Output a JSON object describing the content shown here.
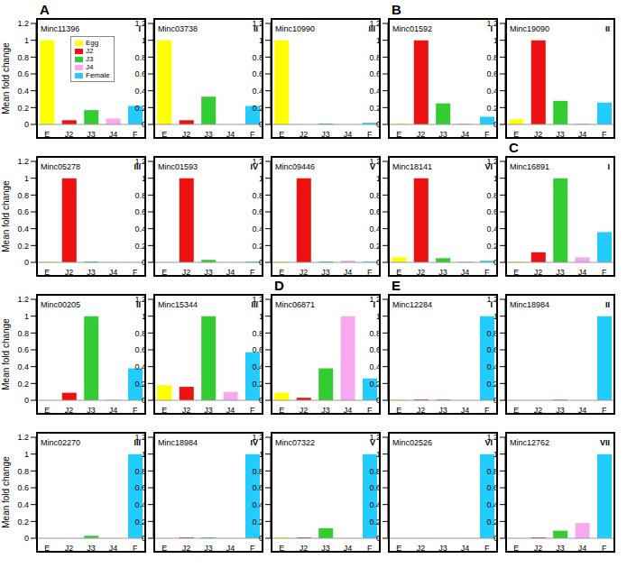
{
  "chart_data": [
    {
      "type": "bar",
      "title": "Minc11396",
      "annotations": [
        "I"
      ],
      "group_label": "A",
      "y_label": "Mean fold change",
      "legend": "upper right",
      "legend_labels": [
        "Egg",
        "J2",
        "J3",
        "J4",
        "Female"
      ],
      "categories": [
        "E",
        "J2",
        "J3",
        "J4",
        "F"
      ],
      "values": [
        1.0,
        0.05,
        0.17,
        0.07,
        0.22
      ],
      "colors": [
        "#ffff00",
        "#ee1111",
        "#33cc33",
        "#f7a8f0",
        "#22ccff"
      ],
      "ylim": [
        0,
        1.2
      ],
      "yticks": [
        0,
        0.2,
        0.4,
        0.6,
        0.8,
        1,
        1.2
      ]
    },
    {
      "type": "bar",
      "title": "Minc03738",
      "annotations": [
        "II"
      ],
      "categories": [
        "E",
        "J2",
        "J3",
        "J4",
        "F"
      ],
      "values": [
        1.0,
        0.05,
        0.33,
        0.0,
        0.22
      ],
      "colors": [
        "#ffff00",
        "#ee1111",
        "#33cc33",
        "#f7a8f0",
        "#22ccff"
      ],
      "ylim": [
        0,
        1.2
      ],
      "yticks": [
        0,
        0.2,
        0.4,
        0.6,
        0.8,
        1,
        1.2
      ]
    },
    {
      "type": "bar",
      "title": "Minc10990",
      "annotations": [
        "III"
      ],
      "categories": [
        "E",
        "J2",
        "J3",
        "J4",
        "F"
      ],
      "values": [
        1.0,
        0.0,
        0.01,
        0.0,
        0.02
      ],
      "colors": [
        "#ffff00",
        "#ee1111",
        "#33cc33",
        "#f7a8f0",
        "#22ccff"
      ],
      "ylim": [
        0,
        1.2
      ],
      "yticks": [
        0,
        0.2,
        0.4,
        0.6,
        0.8,
        1,
        1.2
      ]
    },
    {
      "type": "bar",
      "title": "Minc01592",
      "annotations": [
        "I"
      ],
      "group_label": "B",
      "categories": [
        "E",
        "J2",
        "J3",
        "J4",
        "F"
      ],
      "values": [
        0.01,
        1.0,
        0.25,
        0.01,
        0.09
      ],
      "colors": [
        "#ffff00",
        "#ee1111",
        "#33cc33",
        "#f7a8f0",
        "#22ccff"
      ],
      "ylim": [
        0,
        1.2
      ],
      "yticks": [
        0,
        0.2,
        0.4,
        0.6,
        0.8,
        1,
        1.2
      ]
    },
    {
      "type": "bar",
      "title": "Minc19090",
      "annotations": [
        "II"
      ],
      "categories": [
        "E",
        "J2",
        "J3",
        "J4",
        "F"
      ],
      "values": [
        0.06,
        1.0,
        0.28,
        0.01,
        0.26
      ],
      "colors": [
        "#ffff00",
        "#ee1111",
        "#33cc33",
        "#f7a8f0",
        "#22ccff"
      ],
      "ylim": [
        0,
        1.2
      ],
      "yticks": [
        0,
        0.2,
        0.4,
        0.6,
        0.8,
        1,
        1.2
      ]
    },
    {
      "type": "bar",
      "title": "Minc05278",
      "annotations": [
        "III"
      ],
      "y_label": "Mean fold change",
      "categories": [
        "E",
        "J2",
        "J3",
        "J4",
        "F"
      ],
      "values": [
        0.01,
        1.0,
        0.01,
        0.0,
        0.0
      ],
      "colors": [
        "#ffff00",
        "#ee1111",
        "#33cc33",
        "#f7a8f0",
        "#22ccff"
      ],
      "ylim": [
        0,
        1.2
      ],
      "yticks": [
        0,
        0.2,
        0.4,
        0.6,
        0.8,
        1,
        1.2
      ]
    },
    {
      "type": "bar",
      "title": "Minc01593",
      "annotations": [
        "IV"
      ],
      "categories": [
        "E",
        "J2",
        "J3",
        "J4",
        "F"
      ],
      "values": [
        0.0,
        1.0,
        0.03,
        0.0,
        0.01
      ],
      "colors": [
        "#ffff00",
        "#ee1111",
        "#33cc33",
        "#f7a8f0",
        "#22ccff"
      ],
      "ylim": [
        0,
        1.2
      ],
      "yticks": [
        0,
        0.2,
        0.4,
        0.6,
        0.8,
        1,
        1.2
      ]
    },
    {
      "type": "bar",
      "title": "Minc09446",
      "annotations": [
        "V"
      ],
      "categories": [
        "E",
        "J2",
        "J3",
        "J4",
        "F"
      ],
      "values": [
        0.01,
        1.0,
        0.01,
        0.02,
        0.01
      ],
      "colors": [
        "#ffff00",
        "#ee1111",
        "#33cc33",
        "#f7a8f0",
        "#22ccff"
      ],
      "ylim": [
        0,
        1.2
      ],
      "yticks": [
        0,
        0.2,
        0.4,
        0.6,
        0.8,
        1,
        1.2
      ]
    },
    {
      "type": "bar",
      "title": "Minc18141",
      "annotations": [
        "VI"
      ],
      "categories": [
        "E",
        "J2",
        "J3",
        "J4",
        "F"
      ],
      "values": [
        0.06,
        1.0,
        0.05,
        0.01,
        0.02
      ],
      "colors": [
        "#ffff00",
        "#ee1111",
        "#33cc33",
        "#f7a8f0",
        "#22ccff"
      ],
      "ylim": [
        0,
        1.2
      ],
      "yticks": [
        0,
        0.2,
        0.4,
        0.6,
        0.8,
        1,
        1.2
      ]
    },
    {
      "type": "bar",
      "title": "Minc16891",
      "annotations": [
        "I"
      ],
      "group_label": "C",
      "categories": [
        "E",
        "J2",
        "J3",
        "J4",
        "F"
      ],
      "values": [
        0.01,
        0.12,
        1.0,
        0.06,
        0.36
      ],
      "colors": [
        "#ffff00",
        "#ee1111",
        "#33cc33",
        "#f7a8f0",
        "#22ccff"
      ],
      "ylim": [
        0,
        1.2
      ],
      "yticks": [
        0,
        0.2,
        0.4,
        0.6,
        0.8,
        1,
        1.2
      ]
    },
    {
      "type": "bar",
      "title": "Minc00205",
      "annotations": [
        "II"
      ],
      "y_label": "Mean fold change",
      "categories": [
        "E",
        "J2",
        "J3",
        "J4",
        "F"
      ],
      "values": [
        0.0,
        0.09,
        1.0,
        0.01,
        0.38
      ],
      "colors": [
        "#ffff00",
        "#ee1111",
        "#33cc33",
        "#f7a8f0",
        "#22ccff"
      ],
      "ylim": [
        0,
        1.2
      ],
      "yticks": [
        0,
        0.2,
        0.4,
        0.6,
        0.8,
        1,
        1.2
      ]
    },
    {
      "type": "bar",
      "title": "Minc15344",
      "annotations": [
        "III"
      ],
      "categories": [
        "E",
        "J2",
        "J3",
        "J4",
        "F"
      ],
      "values": [
        0.18,
        0.16,
        1.0,
        0.1,
        0.57
      ],
      "colors": [
        "#ffff00",
        "#ee1111",
        "#33cc33",
        "#f7a8f0",
        "#22ccff"
      ],
      "ylim": [
        0,
        1.2
      ],
      "yticks": [
        0,
        0.2,
        0.4,
        0.6,
        0.8,
        1,
        1.2
      ]
    },
    {
      "type": "bar",
      "title": "Minc06871",
      "annotations": [
        "I"
      ],
      "group_label": "D",
      "categories": [
        "E",
        "J2",
        "J3",
        "J4",
        "F"
      ],
      "values": [
        0.09,
        0.03,
        0.38,
        1.0,
        0.26
      ],
      "colors": [
        "#ffff00",
        "#ee1111",
        "#33cc33",
        "#f7a8f0",
        "#22ccff"
      ],
      "ylim": [
        0,
        1.2
      ],
      "yticks": [
        0,
        0.2,
        0.4,
        0.6,
        0.8,
        1,
        1.2
      ]
    },
    {
      "type": "bar",
      "title": "Minc12284",
      "annotations": [
        "I"
      ],
      "group_label": "E",
      "categories": [
        "E",
        "J2",
        "J3",
        "J4",
        "F"
      ],
      "values": [
        0.01,
        0.01,
        0.01,
        0.0,
        1.0
      ],
      "colors": [
        "#ffff00",
        "#ee1111",
        "#33cc33",
        "#f7a8f0",
        "#22ccff"
      ],
      "ylim": [
        0,
        1.2
      ],
      "yticks": [
        0,
        0.2,
        0.4,
        0.6,
        0.8,
        1,
        1.2
      ]
    },
    {
      "type": "bar",
      "title": "Minc18984",
      "annotations": [
        "II"
      ],
      "categories": [
        "E",
        "J2",
        "J3",
        "J4",
        "F"
      ],
      "values": [
        0.0,
        0.0,
        0.01,
        0.0,
        1.0
      ],
      "colors": [
        "#ffff00",
        "#ee1111",
        "#33cc33",
        "#f7a8f0",
        "#22ccff"
      ],
      "ylim": [
        0,
        1.2
      ],
      "yticks": [
        0,
        0.2,
        0.4,
        0.6,
        0.8,
        1,
        1.2
      ]
    },
    {
      "type": "bar",
      "title": "Minc02270",
      "annotations": [
        "III"
      ],
      "y_label": "Mean fold change",
      "categories": [
        "E",
        "J2",
        "J3",
        "J4",
        "F"
      ],
      "values": [
        0.0,
        0.0,
        0.03,
        0.0,
        1.0
      ],
      "colors": [
        "#ffff00",
        "#ee1111",
        "#33cc33",
        "#f7a8f0",
        "#22ccff"
      ],
      "ylim": [
        0,
        1.2
      ],
      "yticks": [
        0,
        0.2,
        0.4,
        0.6,
        0.8,
        1,
        1.2
      ]
    },
    {
      "type": "bar",
      "title": "Minc18984",
      "annotations": [
        "IV"
      ],
      "categories": [
        "E",
        "J2",
        "J3",
        "J4",
        "F"
      ],
      "values": [
        0.0,
        0.01,
        0.01,
        0.0,
        1.0
      ],
      "colors": [
        "#ffff00",
        "#ee1111",
        "#33cc33",
        "#f7a8f0",
        "#22ccff"
      ],
      "ylim": [
        0,
        1.2
      ],
      "yticks": [
        0,
        0.2,
        0.4,
        0.6,
        0.8,
        1,
        1.2
      ]
    },
    {
      "type": "bar",
      "title": "Minc07322",
      "annotations": [
        "V"
      ],
      "categories": [
        "E",
        "J2",
        "J3",
        "J4",
        "F"
      ],
      "values": [
        0.01,
        0.01,
        0.12,
        0.0,
        1.0
      ],
      "colors": [
        "#ffff00",
        "#ee1111",
        "#33cc33",
        "#f7a8f0",
        "#22ccff"
      ],
      "ylim": [
        0,
        1.2
      ],
      "yticks": [
        0,
        0.2,
        0.4,
        0.6,
        0.8,
        1,
        1.2
      ]
    },
    {
      "type": "bar",
      "title": "Minc02526",
      "annotations": [
        "VI"
      ],
      "categories": [
        "E",
        "J2",
        "J3",
        "J4",
        "F"
      ],
      "values": [
        0.0,
        0.0,
        0.0,
        0.0,
        1.0
      ],
      "colors": [
        "#ffff00",
        "#ee1111",
        "#33cc33",
        "#f7a8f0",
        "#22ccff"
      ],
      "ylim": [
        0,
        1.2
      ],
      "yticks": [
        0,
        0.2,
        0.4,
        0.6,
        0.8,
        1,
        1.2
      ]
    },
    {
      "type": "bar",
      "title": "Minc12762",
      "annotations": [
        "VII"
      ],
      "categories": [
        "E",
        "J2",
        "J3",
        "J4",
        "F"
      ],
      "values": [
        0.0,
        0.01,
        0.09,
        0.18,
        1.0
      ],
      "colors": [
        "#ffff00",
        "#ee1111",
        "#33cc33",
        "#f7a8f0",
        "#22ccff"
      ],
      "ylim": [
        0,
        1.2
      ],
      "yticks": [
        0,
        0.2,
        0.4,
        0.6,
        0.8,
        1,
        1.2
      ]
    }
  ]
}
